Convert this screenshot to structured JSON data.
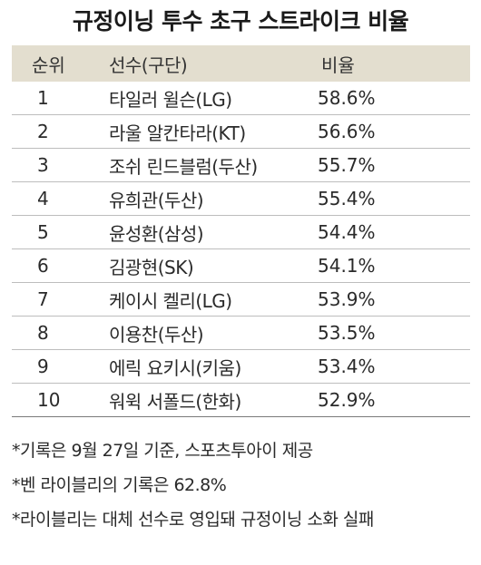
{
  "title": "규정이닝 투수 초구 스트라이크 비율",
  "table": {
    "headers": {
      "rank": "순위",
      "player": "선수(구단)",
      "ratio": "비율"
    },
    "rows": [
      {
        "rank": "1",
        "player": "타일러 윌슨(LG)",
        "ratio": "58.6%"
      },
      {
        "rank": "2",
        "player": "라울 알칸타라(KT)",
        "ratio": "56.6%"
      },
      {
        "rank": "3",
        "player": "조쉬 린드블럼(두산)",
        "ratio": "55.7%"
      },
      {
        "rank": "4",
        "player": "유희관(두산)",
        "ratio": "55.4%"
      },
      {
        "rank": "5",
        "player": "윤성환(삼성)",
        "ratio": "54.4%"
      },
      {
        "rank": "6",
        "player": "김광현(SK)",
        "ratio": "54.1%"
      },
      {
        "rank": "7",
        "player": "케이시 켈리(LG)",
        "ratio": "53.9%"
      },
      {
        "rank": "8",
        "player": "이용찬(두산)",
        "ratio": "53.5%"
      },
      {
        "rank": "9",
        "player": "에릭 요키시(키움)",
        "ratio": "53.4%"
      },
      {
        "rank": "10",
        "player": "워윅 서폴드(한화)",
        "ratio": "52.9%"
      }
    ]
  },
  "notes": [
    "*기록은 9월 27일 기준, 스포츠투아이 제공",
    "*벤 라이블리의 기록은 62.8%",
    "*라이블리는 대체 선수로 영입돼 규정이닝 소화 실패"
  ],
  "colors": {
    "header_bg": "#e3decf",
    "text": "#2a2a2a"
  }
}
